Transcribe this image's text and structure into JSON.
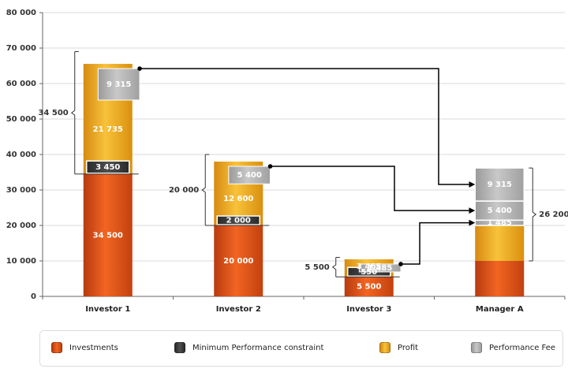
{
  "chart_data": {
    "type": "bar",
    "stacked": true,
    "categories": [
      "Investor 1",
      "Investor 2",
      "Investor 3",
      "Manager A"
    ],
    "ylim": [
      0,
      80000
    ],
    "yticks": [
      0,
      10000,
      20000,
      30000,
      40000,
      50000,
      60000,
      70000,
      80000
    ],
    "ytick_labels": [
      "0",
      "10 000",
      "20 000",
      "30 000",
      "40 000",
      "50 000",
      "60 000",
      "70 000",
      "80 000"
    ],
    "grid": true,
    "legend_position": "bottom",
    "colors": {
      "investments": "#e8581c",
      "min_perf": "#3a3a3a",
      "profit": "#f0ab22",
      "perf_fee": "#b4b4b4"
    },
    "series": [
      {
        "key": "investments",
        "name": "Investments",
        "values": [
          34500,
          20000,
          5500,
          10000
        ],
        "labels": [
          "34 500",
          "20 000",
          "5 500",
          ""
        ]
      },
      {
        "key": "min_perf",
        "name": "Minimum Performance constraint",
        "values": [
          3450,
          2000,
          550,
          0
        ],
        "labels": [
          "3 450",
          "2 000",
          "550",
          ""
        ]
      },
      {
        "key": "profit",
        "name": "Profit",
        "values": [
          21735,
          12600,
          3465,
          10000
        ],
        "labels": [
          "21 735",
          "12 600",
          "3 465",
          ""
        ]
      },
      {
        "key": "perf_fee",
        "name": "Performance Fee",
        "values": [
          9315,
          5400,
          1485,
          0
        ],
        "labels": [
          "9 315",
          "5 400",
          "1 485",
          ""
        ]
      }
    ],
    "manager_fees": [
      {
        "value": 1485,
        "label": "1 485"
      },
      {
        "value": 5400,
        "label": "5 400"
      },
      {
        "value": 9315,
        "label": "9 315"
      }
    ],
    "brace_annotations": [
      {
        "category": "Investor 1",
        "from": 34500,
        "to": 69000,
        "label": "34 500"
      },
      {
        "category": "Investor 2",
        "from": 20000,
        "to": 40000,
        "label": "20 000"
      },
      {
        "category": "Investor 3",
        "from": 5500,
        "to": 11000,
        "label": "5 500"
      },
      {
        "category": "Manager A",
        "from": 10000,
        "to": 36200,
        "label": "26 200"
      }
    ]
  }
}
